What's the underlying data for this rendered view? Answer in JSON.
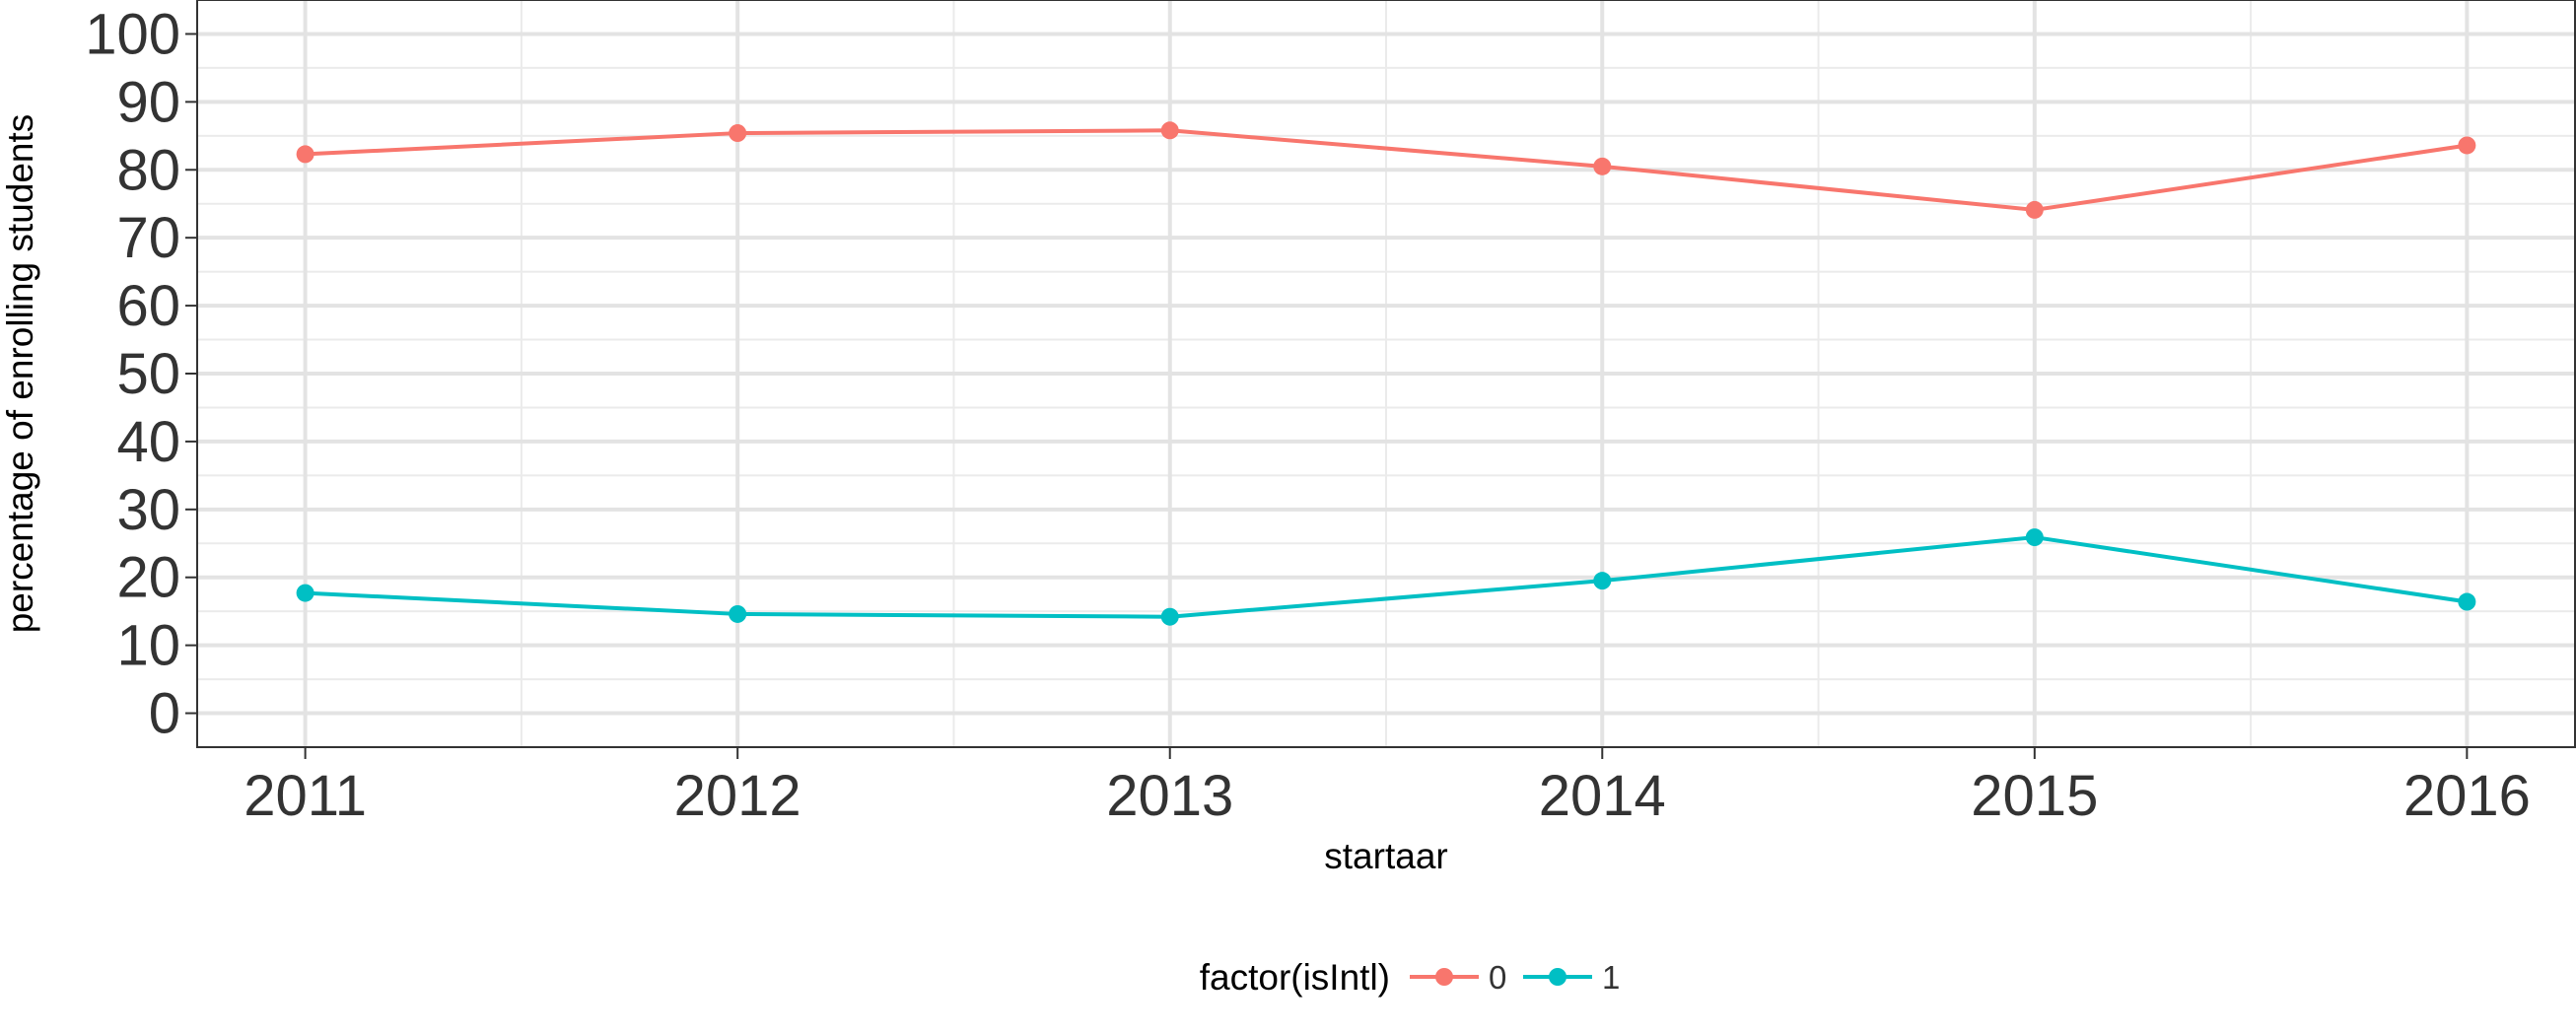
{
  "chart_data": {
    "type": "line",
    "x": [
      2011,
      2012,
      2013,
      2014,
      2015,
      2016
    ],
    "xlabel": "startaar",
    "ylabel": "percentage of enrolling students",
    "xlim": [
      2010.75,
      2016.25
    ],
    "ylim": [
      -5,
      105
    ],
    "y_ticks": [
      0,
      10,
      20,
      30,
      40,
      50,
      60,
      70,
      80,
      90,
      100
    ],
    "x_ticks": [
      2011,
      2012,
      2013,
      2014,
      2015,
      2016
    ],
    "grid": true,
    "legend": {
      "title": "factor(isIntl)",
      "position": "bottom"
    },
    "series": [
      {
        "name": "0",
        "color": "#F8766D",
        "values": [
          82.3,
          85.4,
          85.8,
          80.5,
          74.1,
          83.6
        ]
      },
      {
        "name": "1",
        "color": "#00BFC4",
        "values": [
          17.7,
          14.6,
          14.2,
          19.5,
          25.9,
          16.4
        ]
      }
    ]
  }
}
